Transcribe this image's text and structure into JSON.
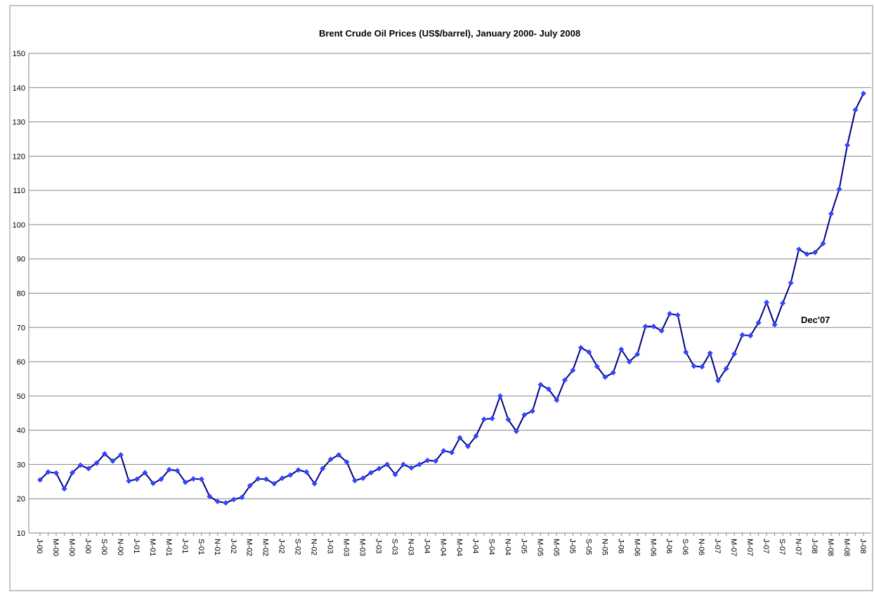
{
  "chart_data": {
    "type": "line",
    "title": "Brent Crude Oil Prices (US$/barrel), January 2000- July 2008",
    "annotation": "Dec'07",
    "categories": [
      "J-00",
      null,
      "M-00",
      null,
      "M-00",
      null,
      "J-00",
      null,
      "S-00",
      null,
      "N-00",
      null,
      "J-01",
      null,
      "M-01",
      null,
      "M-01",
      null,
      "J-01",
      null,
      "S-01",
      null,
      "N-01",
      null,
      "J-02",
      null,
      "M-02",
      null,
      "M-02",
      null,
      "J-02",
      null,
      "S-02",
      null,
      "N-02",
      null,
      "J-03",
      null,
      "M-03",
      null,
      "M-03",
      null,
      "J-03",
      null,
      "S-03",
      null,
      "N-03",
      null,
      "J-04",
      null,
      "M-04",
      null,
      "M-04",
      null,
      "J-04",
      null,
      "S-04",
      null,
      "N-04",
      null,
      "J-05",
      null,
      "M-05",
      null,
      "M-05",
      null,
      "J-05",
      null,
      "S-05",
      null,
      "N-05",
      null,
      "J-06",
      null,
      "M-06",
      null,
      "M-06",
      null,
      "J-06",
      null,
      "S-06",
      null,
      "N-06",
      null,
      "J-07",
      null,
      "M-07",
      null,
      "M-07",
      null,
      "J-07",
      null,
      "S-07",
      null,
      "N-07",
      null,
      "J-08",
      null,
      "M-08",
      null,
      "M-08",
      null,
      "J-08"
    ],
    "series": [
      {
        "name": "Brent",
        "color": "#000080",
        "marker_color": "#3344ff",
        "values": [
          25.5,
          27.8,
          27.5,
          22.9,
          27.6,
          29.8,
          28.8,
          30.4,
          33.1,
          31.0,
          32.8,
          25.2,
          25.7,
          27.6,
          24.5,
          25.7,
          28.5,
          28.2,
          24.8,
          25.8,
          25.7,
          20.7,
          19.2,
          18.8,
          19.8,
          20.4,
          23.8,
          25.8,
          25.7,
          24.4,
          26.0,
          26.9,
          28.4,
          27.8,
          24.4,
          28.8,
          31.5,
          32.8,
          30.7,
          25.3,
          26.0,
          27.6,
          28.8,
          30.0,
          27.1,
          30.0,
          29.0,
          30.0,
          31.2,
          31.0,
          34.0,
          33.5,
          37.8,
          35.3,
          38.3,
          43.2,
          43.4,
          50.0,
          43.1,
          39.7,
          44.5,
          45.6,
          53.3,
          52.0,
          48.8,
          54.6,
          57.5,
          64.1,
          62.8,
          58.6,
          55.5,
          56.8,
          63.6,
          60.0,
          62.2,
          70.3,
          70.3,
          69.0,
          74.0,
          73.6,
          62.8,
          58.7,
          58.5,
          62.5,
          54.5,
          58.0,
          62.3,
          67.8,
          67.6,
          71.4,
          77.3,
          70.8,
          77.1,
          83.0,
          92.8,
          91.4,
          91.9,
          94.5,
          103.2,
          110.4,
          123.2,
          133.5,
          138.3
        ]
      }
    ],
    "ylim": [
      10,
      150
    ],
    "yticks": [
      10,
      20,
      30,
      40,
      50,
      60,
      70,
      80,
      90,
      100,
      110,
      120,
      130,
      140,
      150
    ],
    "grid": true
  }
}
